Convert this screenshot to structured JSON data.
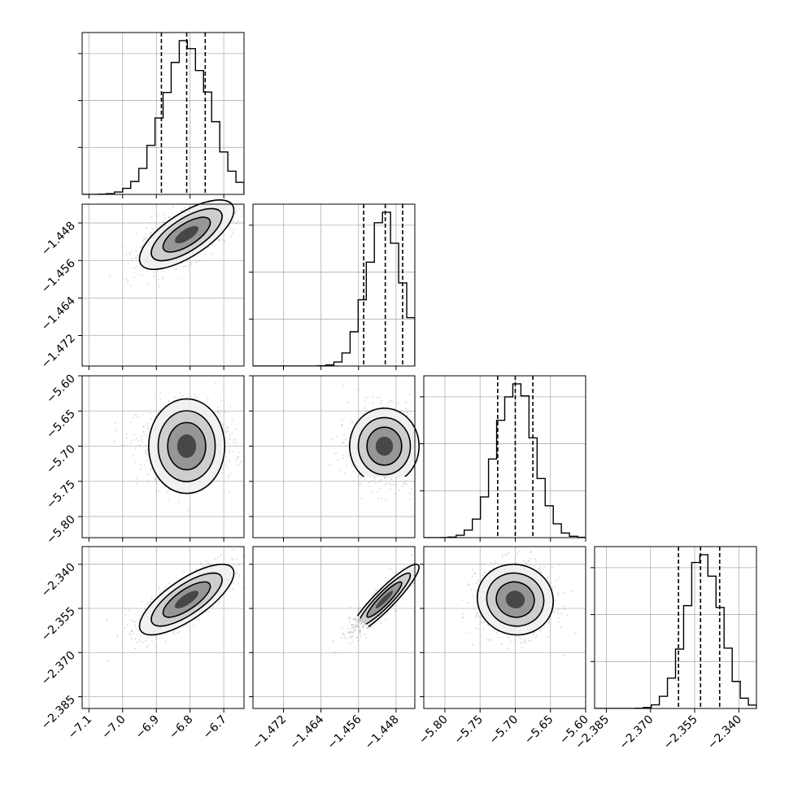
{
  "chart_data": {
    "type": "corner",
    "parameters": [
      {
        "index": 0,
        "mean": -6.81,
        "sigma": 0.07,
        "range": [
          -7.12,
          -6.64
        ],
        "quantiles": [
          -6.885,
          -6.81,
          -6.755
        ],
        "ticks": [
          -7.1,
          -7.0,
          -6.9,
          -6.8,
          -6.7
        ],
        "tick_labels": [
          "−7.1",
          "−7.0",
          "−6.9",
          "−6.8",
          "−6.7"
        ]
      },
      {
        "index": 1,
        "mean": -1.4505,
        "sigma": 0.0037,
        "range": [
          -1.4785,
          -1.444
        ],
        "quantiles": [
          -1.4549,
          -1.4503,
          -1.4466
        ],
        "ticks": [
          -1.472,
          -1.464,
          -1.456,
          -1.448
        ],
        "tick_labels": [
          "−1.472",
          "−1.464",
          "−1.456",
          "−1.448"
        ]
      },
      {
        "index": 2,
        "mean": -5.7,
        "sigma": 0.027,
        "range": [
          -5.83,
          -5.6
        ],
        "quantiles": [
          -5.725,
          -5.7,
          -5.675
        ],
        "ticks": [
          -5.8,
          -5.75,
          -5.7,
          -5.65,
          -5.6
        ],
        "tick_labels": [
          "−5.80",
          "−5.75",
          "−5.70",
          "−5.65",
          "−5.60"
        ]
      },
      {
        "index": 3,
        "mean": -2.352,
        "sigma": 0.006,
        "range": [
          -2.389,
          -2.334
        ],
        "quantiles": [
          -2.3605,
          -2.353,
          -2.3465
        ],
        "ticks": [
          -2.385,
          -2.37,
          -2.355,
          -2.34
        ],
        "tick_labels": [
          "−2.385",
          "−2.370",
          "−2.355",
          "−2.340"
        ]
      }
    ],
    "correlations": [
      [
        1,
        0.7,
        0,
        0.75
      ],
      [
        0.7,
        1,
        0,
        0.92
      ],
      [
        0,
        0,
        1,
        -0.05
      ],
      [
        0.75,
        0.92,
        -0.05,
        1
      ]
    ],
    "grid": true,
    "histogram_bins": 20,
    "contour_levels": 3
  }
}
